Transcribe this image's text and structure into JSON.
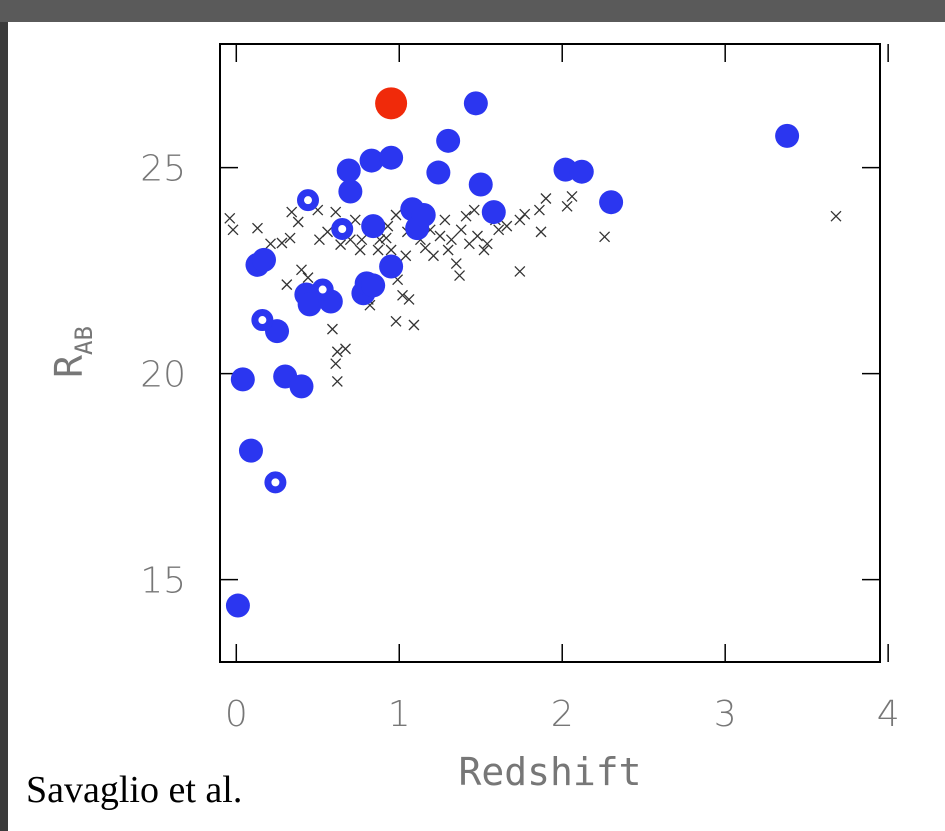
{
  "chart_data": {
    "type": "scatter",
    "xlabel": "Redshift",
    "ylabel": "R",
    "ylabel_subscript": "AB",
    "caption": "Savaglio et al.",
    "xlim": [
      -0.1,
      3.95
    ],
    "ylim": [
      13,
      28
    ],
    "xticks": [
      0,
      1,
      2,
      3,
      4
    ],
    "yticks": [
      15,
      20,
      25
    ],
    "series": [
      {
        "color": "#2b36f0",
        "marker": "circle",
        "x": [
          0.01,
          0.04,
          0.09,
          0.13,
          0.17,
          0.25,
          0.3,
          0.4,
          0.43,
          0.45,
          0.58,
          0.69,
          0.7,
          0.78,
          0.8,
          0.83,
          0.84,
          0.84,
          0.95,
          0.95,
          1.08,
          1.11,
          1.15,
          1.24,
          1.3,
          1.47,
          1.5,
          1.58,
          2.02,
          2.12,
          2.3,
          3.38
        ],
        "values": [
          14.37,
          19.86,
          18.13,
          22.64,
          22.76,
          21.03,
          19.93,
          19.69,
          21.92,
          21.68,
          21.75,
          24.93,
          24.42,
          21.95,
          22.19,
          25.17,
          23.58,
          22.14,
          25.24,
          22.6,
          23.99,
          23.53,
          23.85,
          24.88,
          25.65,
          26.56,
          24.59,
          23.92,
          24.95,
          24.9,
          24.16,
          25.77
        ]
      },
      {
        "color": "#2b36f0",
        "marker": "ring",
        "x": [
          0.44,
          0.65,
          0.16,
          0.53,
          0.24
        ],
        "values": [
          24.21,
          23.51,
          21.3,
          22.04,
          17.36
        ]
      },
      {
        "color": "#f02a0a",
        "marker": "big-circle",
        "x": [
          0.95
        ],
        "values": [
          26.56
        ]
      },
      {
        "color": "#333333",
        "marker": "cross",
        "x": [
          -0.04,
          -0.02,
          0.13,
          0.21,
          0.28,
          0.33,
          0.38,
          0.31,
          0.4,
          0.44,
          0.34,
          0.5,
          0.51,
          0.56,
          0.61,
          0.59,
          0.62,
          0.61,
          0.62,
          0.67,
          0.64,
          0.7,
          0.73,
          0.76,
          0.77,
          0.81,
          0.82,
          0.87,
          0.88,
          0.92,
          0.93,
          0.95,
          0.98,
          0.99,
          1.02,
          1.04,
          1.05,
          1.06,
          1.09,
          0.98,
          1.13,
          1.16,
          1.19,
          1.21,
          1.25,
          1.28,
          1.3,
          1.32,
          1.35,
          1.37,
          1.38,
          1.41,
          1.43,
          1.46,
          1.48,
          1.52,
          1.54,
          1.59,
          1.61,
          1.66,
          1.74,
          1.77,
          1.86,
          1.9,
          1.87,
          2.03,
          2.06,
          1.74,
          2.26,
          3.68
        ],
        "values": [
          23.77,
          23.49,
          23.53,
          23.15,
          23.17,
          23.29,
          23.68,
          22.16,
          22.52,
          22.33,
          23.92,
          23.97,
          23.25,
          23.44,
          23.92,
          21.08,
          20.53,
          20.24,
          19.81,
          20.6,
          23.13,
          23.25,
          23.73,
          23.0,
          23.25,
          21.8,
          21.66,
          23.0,
          23.25,
          23.29,
          23.58,
          23.0,
          23.85,
          22.28,
          21.9,
          22.86,
          23.44,
          21.8,
          21.18,
          21.27,
          23.25,
          23.05,
          23.49,
          22.86,
          23.34,
          23.73,
          23.0,
          23.25,
          22.67,
          22.38,
          23.49,
          23.82,
          23.15,
          23.97,
          23.34,
          23.0,
          23.15,
          23.73,
          23.49,
          23.58,
          23.73,
          23.87,
          23.97,
          24.25,
          23.44,
          24.06,
          24.3,
          22.48,
          23.32,
          23.82
        ]
      }
    ]
  }
}
